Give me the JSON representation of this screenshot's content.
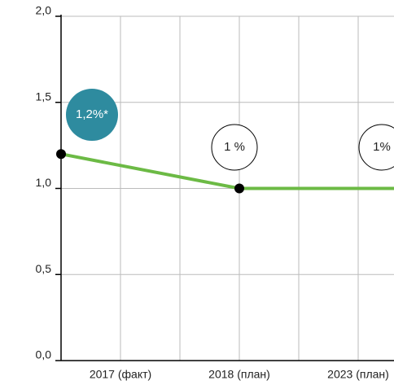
{
  "chart_data": {
    "type": "line",
    "categories": [
      "2017 (факт)",
      "2018 (план)",
      "2023 (план)"
    ],
    "values": [
      1.2,
      1.0,
      1.0
    ],
    "value_labels": [
      "1,2%*",
      "1 %",
      "1%"
    ],
    "color": "#6cba45",
    "ylim": [
      0,
      2
    ],
    "yticks": [
      {
        "value": 0,
        "label": "0,0"
      },
      {
        "value": 0.5,
        "label": "0,5"
      },
      {
        "value": 1,
        "label": "1,0"
      },
      {
        "value": 1.5,
        "label": "1,5"
      },
      {
        "value": 2,
        "label": "2,0"
      }
    ],
    "grid": true
  }
}
